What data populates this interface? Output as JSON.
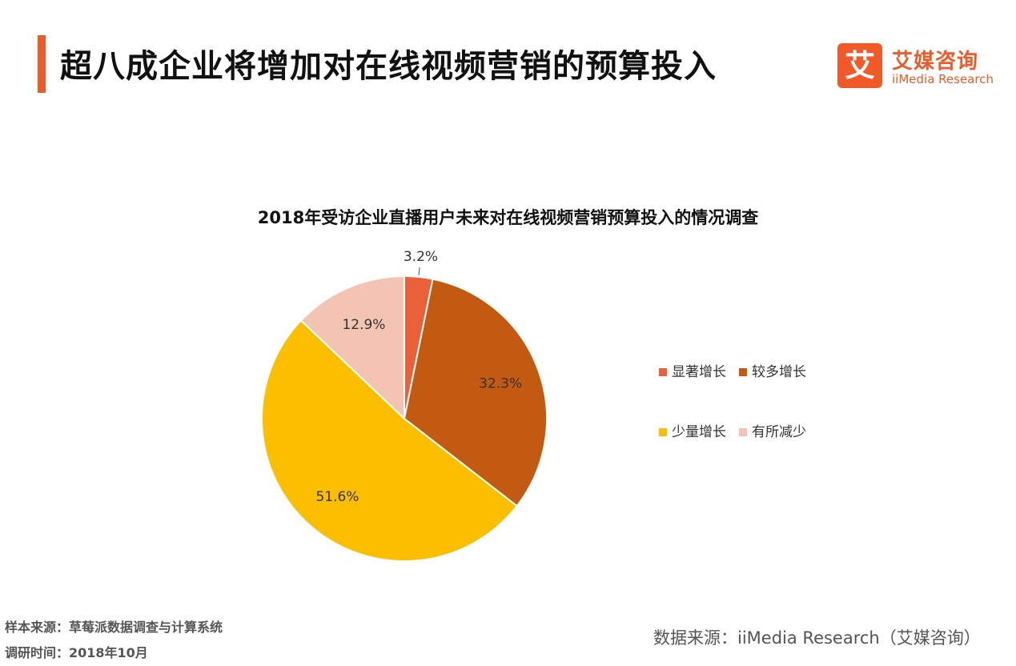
{
  "header": {
    "title": "超八成企业将增加对在线视频营销的预算投入",
    "brand_logo_char": "艾",
    "brand_cn": "艾媒咨询",
    "brand_en": "iiMedia Research",
    "accent_color": "#f05a28"
  },
  "chart_data": {
    "type": "pie",
    "title": "2018年受访企业直播用户未来对在线视频营销预算投入的情况调查",
    "categories": [
      "显著增长",
      "较多增长",
      "少量增长",
      "有所减少"
    ],
    "values": [
      3.2,
      32.3,
      51.6,
      12.9
    ],
    "labels": [
      "3.2%",
      "32.3%",
      "51.6%",
      "12.9%"
    ],
    "colors": [
      "#e9603a",
      "#c25a12",
      "#fbbf00",
      "#f4c4b3"
    ],
    "legend": "right"
  },
  "footer": {
    "sample_source": "样本来源：草莓派数据调查与计算系统",
    "survey_time": "调研时间：2018年10月",
    "data_source": "数据来源：iiMedia Research（艾媒咨询）"
  }
}
